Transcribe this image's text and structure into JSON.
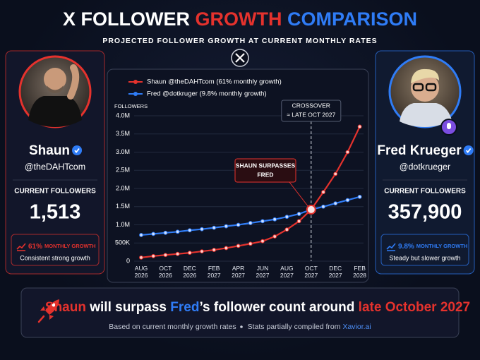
{
  "header": {
    "title": [
      "X FOLLOWER",
      "GROWTH",
      "COMPARISON"
    ],
    "subtitle": "PROJECTED FOLLOWER GROWTH AT CURRENT MONTHLY RATES"
  },
  "profiles": [
    {
      "name": "Shaun",
      "handle": "@theDAHTcom",
      "followers_label": "CURRENT FOLLOWERS",
      "followers": "1,513",
      "growth_rate": "61%",
      "growth_label": "MONTHLY GROWTH",
      "note": "Consistent strong growth",
      "color": "#e5322d"
    },
    {
      "name": "Fred Krueger",
      "handle": "@dotkrueger",
      "followers_label": "CURRENT FOLLOWERS",
      "followers": "357,900",
      "growth_rate": "9.8%",
      "growth_label": "MONTHLY GROWTH",
      "note": "Steady but slower growth",
      "color": "#2f7cf6"
    }
  ],
  "chart_data": {
    "type": "line",
    "y_label": "FOLLOWERS",
    "categories": [
      "AUG 2026",
      null,
      "OCT 2026",
      null,
      "DEC 2026",
      null,
      "FEB 2027",
      null,
      "APR 2027",
      null,
      "JUN 2027",
      null,
      "AUG 2027",
      null,
      "OCT 2027",
      null,
      "DEC 2027",
      null,
      "FEB 2028"
    ],
    "series": [
      {
        "name": "Shaun @theDAHTcom (61% monthly growth)",
        "color": "#e5322d",
        "values": [
          100000,
          140000,
          170000,
          200000,
          230000,
          270000,
          310000,
          360000,
          420000,
          480000,
          550000,
          680000,
          870000,
          1100000,
          1420000,
          1900000,
          2400000,
          3000000,
          3700000
        ]
      },
      {
        "name": "Fred @dotkruger (9.8% monthly growth)",
        "color": "#2f7cf6",
        "values": [
          720000,
          750000,
          780000,
          810000,
          850000,
          880000,
          920000,
          960000,
          1000000,
          1050000,
          1100000,
          1150000,
          1220000,
          1300000,
          1420000,
          1500000,
          1590000,
          1680000,
          1770000
        ]
      }
    ],
    "ylim": [
      0,
      4000000
    ],
    "yticks": [
      0,
      {
        "value": 500000,
        "label": "500K"
      },
      {
        "value": 1000000,
        "label": "1.0M"
      },
      {
        "value": 1500000,
        "label": "1.5M"
      },
      {
        "value": 2000000,
        "label": "2.0M"
      },
      {
        "value": 2500000,
        "label": "2.5M"
      },
      {
        "value": 3000000,
        "label": "3.0M"
      },
      {
        "value": 3500000,
        "label": "3.5M"
      },
      {
        "value": 4000000,
        "label": "4.0M"
      }
    ],
    "grid": true,
    "annotations": [
      {
        "lines": [
          "CROSSOVER",
          "≈ LATE OCT 2027"
        ]
      },
      {
        "lines": [
          "SHAUN SURPASSES",
          "FRED"
        ]
      }
    ]
  },
  "banner": {
    "headline": [
      "Shaun",
      " will surpass ",
      "Fred",
      "’s follower count around ",
      "late October 2027"
    ],
    "footnote": [
      "Based on current monthly growth rates",
      "Stats partially compiled from",
      "Xavior.ai"
    ]
  }
}
